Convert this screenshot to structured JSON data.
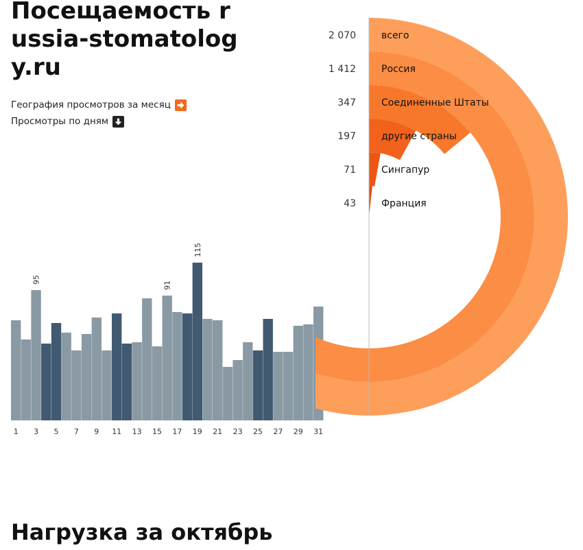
{
  "header": {
    "title": "Посещаемость russia-stomatology.ru"
  },
  "links": {
    "geography": "География просмотров за месяц",
    "daily": "Просмотры по дням"
  },
  "icons": {
    "geography_icon": "arrow-right-icon",
    "daily_icon": "arrow-down-icon"
  },
  "colors": {
    "bar_light": "#8a9aa4",
    "bar_dark": "#415a72",
    "accent": "#f26a1b"
  },
  "chart_data": [
    {
      "type": "bar",
      "title": "",
      "categories": [
        1,
        2,
        3,
        4,
        5,
        6,
        7,
        8,
        9,
        10,
        11,
        12,
        13,
        14,
        15,
        16,
        17,
        18,
        19,
        20,
        21,
        22,
        23,
        24,
        25,
        26,
        27,
        28,
        29,
        30,
        31
      ],
      "values": [
        73,
        59,
        95,
        56,
        71,
        64,
        51,
        63,
        75,
        51,
        78,
        56,
        57,
        89,
        54,
        91,
        79,
        78,
        115,
        74,
        73,
        39,
        44,
        57,
        51,
        74,
        50,
        50,
        69,
        70,
        83
      ],
      "weekend": [
        false,
        false,
        false,
        true,
        true,
        false,
        false,
        false,
        false,
        false,
        true,
        true,
        false,
        false,
        false,
        false,
        false,
        true,
        true,
        false,
        false,
        false,
        false,
        false,
        true,
        true,
        false,
        false,
        false,
        false,
        false
      ],
      "tick_labels": [
        "1",
        "3",
        "5",
        "7",
        "9",
        "11",
        "13",
        "15",
        "17",
        "19",
        "21",
        "23",
        "25",
        "27",
        "29",
        "31"
      ],
      "annotations": [
        {
          "day": 3,
          "label": "95"
        },
        {
          "day": 16,
          "label": "91"
        },
        {
          "day": 19,
          "label": "115"
        }
      ],
      "ylim": [
        0,
        115
      ],
      "grid": false
    },
    {
      "type": "pie",
      "subtype": "radial-bar",
      "categories": [
        "всего",
        "Россия",
        "Соединенные Штаты",
        "другие страны",
        "Сингапур",
        "Франция"
      ],
      "value_labels": [
        "2 070",
        "1 412",
        "347",
        "197",
        "71",
        "43"
      ],
      "values": [
        2070,
        1412,
        347,
        197,
        71,
        43
      ],
      "colors": [
        "#fd9e5a",
        "#fb8d44",
        "#f8782b",
        "#f2621c",
        "#ec5513",
        "#e24e0e"
      ]
    }
  ],
  "footer": {
    "section_title": "Нагрузка за октябрь"
  }
}
